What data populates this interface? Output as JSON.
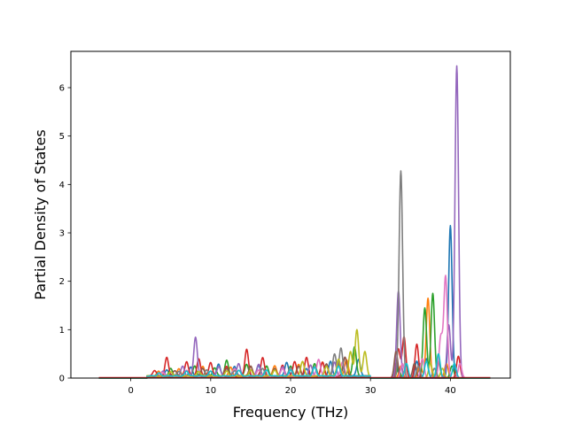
{
  "chart_data": {
    "type": "line",
    "title": "",
    "xlabel": "Frequency (THz)",
    "ylabel": "Partial Density of States",
    "xlim": [
      -7.5,
      47.5
    ],
    "ylim": [
      0,
      6.75
    ],
    "xticks": [
      0,
      10,
      20,
      30,
      40
    ],
    "yticks": [
      0,
      1,
      2,
      3,
      4,
      5,
      6
    ],
    "grid": false,
    "legend": "none",
    "baseline_color": "#d62728",
    "series": [
      {
        "color": "#1f77b4",
        "peaks": [
          [
            4.5,
            0.12
          ],
          [
            7.5,
            0.18
          ],
          [
            11,
            0.25
          ],
          [
            13,
            0.2
          ],
          [
            16,
            0.22
          ],
          [
            19.5,
            0.28
          ],
          [
            22,
            0.15
          ],
          [
            25,
            0.3
          ],
          [
            28.5,
            0.35
          ],
          [
            33.2,
            0.3
          ],
          [
            35.8,
            0.35
          ],
          [
            37,
            0.4
          ],
          [
            40,
            3.15
          ]
        ]
      },
      {
        "color": "#ff7f0e",
        "peaks": [
          [
            3.5,
            0.1
          ],
          [
            6,
            0.15
          ],
          [
            9,
            0.2
          ],
          [
            12.5,
            0.18
          ],
          [
            15,
            0.2
          ],
          [
            18,
            0.22
          ],
          [
            21,
            0.25
          ],
          [
            24,
            0.3
          ],
          [
            27,
            0.35
          ],
          [
            33.8,
            0.25
          ],
          [
            36.2,
            0.3
          ],
          [
            37.2,
            1.65
          ],
          [
            39.5,
            0.3
          ]
        ]
      },
      {
        "color": "#2ca02c",
        "peaks": [
          [
            5,
            0.15
          ],
          [
            8,
            0.2
          ],
          [
            10.5,
            0.18
          ],
          [
            12,
            0.32
          ],
          [
            14.5,
            0.25
          ],
          [
            17,
            0.2
          ],
          [
            20,
            0.2
          ],
          [
            23,
            0.25
          ],
          [
            26,
            0.3
          ],
          [
            28,
            0.6
          ],
          [
            33.5,
            0.2
          ],
          [
            36.8,
            1.45
          ],
          [
            37.8,
            1.75
          ],
          [
            40.2,
            0.25
          ]
        ]
      },
      {
        "color": "#d62728",
        "peaks": [
          [
            3,
            0.12
          ],
          [
            4.5,
            0.38
          ],
          [
            7,
            0.3
          ],
          [
            8.5,
            0.35
          ],
          [
            10,
            0.28
          ],
          [
            12,
            0.2
          ],
          [
            14.5,
            0.55
          ],
          [
            16.5,
            0.38
          ],
          [
            19,
            0.22
          ],
          [
            20.5,
            0.3
          ],
          [
            22,
            0.38
          ],
          [
            24,
            0.28
          ],
          [
            26,
            0.25
          ],
          [
            33.5,
            0.6
          ],
          [
            34.2,
            0.85
          ],
          [
            35.8,
            0.7
          ],
          [
            41,
            0.45
          ]
        ]
      },
      {
        "color": "#9467bd",
        "peaks": [
          [
            4,
            0.1
          ],
          [
            6.5,
            0.2
          ],
          [
            8.1,
            0.8
          ],
          [
            11,
            0.2
          ],
          [
            13.5,
            0.25
          ],
          [
            16,
            0.25
          ],
          [
            19,
            0.2
          ],
          [
            22.5,
            0.22
          ],
          [
            25.5,
            0.28
          ],
          [
            33.5,
            1.8
          ],
          [
            39.8,
            1.1
          ],
          [
            40.8,
            6.45
          ]
        ]
      },
      {
        "color": "#8c564b",
        "peaks": [
          [
            5.5,
            0.12
          ],
          [
            9,
            0.15
          ],
          [
            12,
            0.15
          ],
          [
            15,
            0.2
          ],
          [
            18,
            0.15
          ],
          [
            21,
            0.2
          ],
          [
            24.5,
            0.25
          ],
          [
            26.8,
            0.4
          ],
          [
            33.2,
            0.55
          ],
          [
            35.5,
            0.3
          ],
          [
            38.5,
            0.35
          ]
        ]
      },
      {
        "color": "#e377c2",
        "peaks": [
          [
            4,
            0.08
          ],
          [
            7,
            0.12
          ],
          [
            10,
            0.1
          ],
          [
            13,
            0.15
          ],
          [
            16,
            0.12
          ],
          [
            19,
            0.15
          ],
          [
            23.5,
            0.35
          ],
          [
            26.5,
            0.3
          ],
          [
            34,
            0.3
          ],
          [
            36.5,
            0.4
          ],
          [
            38.8,
            0.85
          ],
          [
            39.4,
            2.1
          ],
          [
            41.2,
            0.3
          ]
        ]
      },
      {
        "color": "#7f7f7f",
        "peaks": [
          [
            6,
            0.1
          ],
          [
            9.5,
            0.12
          ],
          [
            13,
            0.12
          ],
          [
            16.5,
            0.15
          ],
          [
            20,
            0.18
          ],
          [
            23,
            0.2
          ],
          [
            25.5,
            0.45
          ],
          [
            26.3,
            0.58
          ],
          [
            33.8,
            4.28
          ],
          [
            36,
            0.25
          ],
          [
            38,
            0.2
          ]
        ]
      },
      {
        "color": "#bcbd22",
        "peaks": [
          [
            5,
            0.08
          ],
          [
            8.5,
            0.1
          ],
          [
            12,
            0.1
          ],
          [
            15,
            0.12
          ],
          [
            18,
            0.12
          ],
          [
            21.5,
            0.3
          ],
          [
            24.5,
            0.2
          ],
          [
            26,
            0.35
          ],
          [
            27.5,
            0.5
          ],
          [
            28.3,
            0.95
          ],
          [
            29.3,
            0.5
          ],
          [
            37.5,
            0.3
          ],
          [
            39,
            0.2
          ]
        ]
      },
      {
        "color": "#17becf",
        "peaks": [
          [
            3.5,
            0.06
          ],
          [
            7,
            0.1
          ],
          [
            10,
            0.1
          ],
          [
            13.5,
            0.12
          ],
          [
            17,
            0.12
          ],
          [
            20,
            0.12
          ],
          [
            23,
            0.18
          ],
          [
            26,
            0.2
          ],
          [
            34.5,
            0.3
          ],
          [
            37,
            0.35
          ],
          [
            38.5,
            0.5
          ],
          [
            40.5,
            0.3
          ]
        ]
      }
    ]
  }
}
